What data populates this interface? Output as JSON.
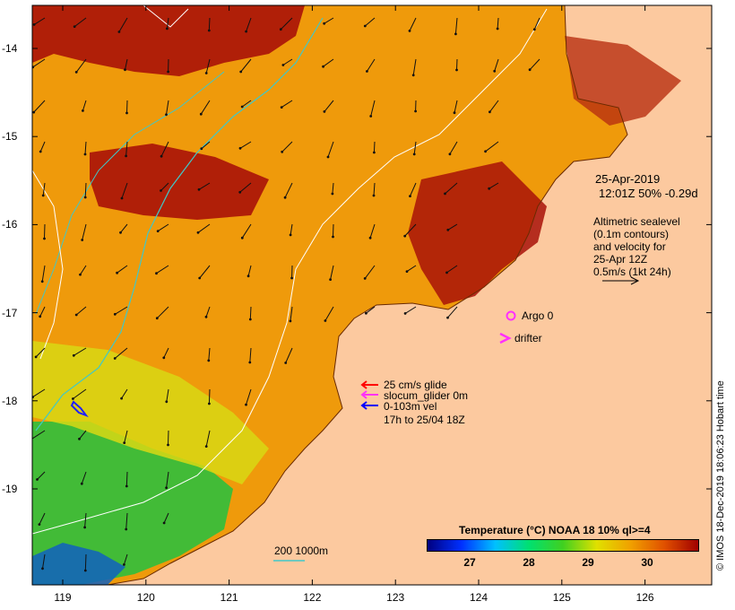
{
  "map": {
    "x_ticks": [
      "119",
      "120",
      "121",
      "122",
      "123",
      "124",
      "125",
      "126"
    ],
    "y_ticks": [
      "-14",
      "-15",
      "-16",
      "-17",
      "-18",
      "-19"
    ],
    "x_range": [
      118.6,
      126.7
    ],
    "y_range": [
      -20.1,
      -13.5
    ],
    "colors": {
      "land": "#fcc99f",
      "sea_warm": "#ef9a0b",
      "sea_hot": "#a81208",
      "sea_cool": "#2fbf3c"
    }
  },
  "annotations": {
    "date": "25-Apr-2019",
    "time_line": "12:01Z  50% -0.29d",
    "alt_1": "Altimetric sealevel",
    "alt_2": "(0.1m contours)",
    "alt_3": "and velocity for",
    "alt_4": "25-Apr 12Z",
    "alt_5": "0.5m/s (1kt 24h)",
    "argo": "Argo 0",
    "drifter": "drifter",
    "glide_1": "25 cm/s glide",
    "glide_2": "slocum_glider 0m",
    "glide_3": "0-103m vel",
    "glide_4": "17h to 25/04 18Z",
    "scale_label": "200  1000m",
    "copyright": "© IMOS 18-Dec-2019 18:06:23 Hobart time"
  },
  "colorbar": {
    "title": "Temperature (°C) NOAA 18 10% ql>=4",
    "ticks": [
      "27",
      "28",
      "29",
      "30"
    ],
    "stops": [
      "#000080",
      "#0030ff",
      "#00c0ff",
      "#00e070",
      "#40d020",
      "#e0e000",
      "#f0a000",
      "#e05000",
      "#a00000"
    ]
  }
}
